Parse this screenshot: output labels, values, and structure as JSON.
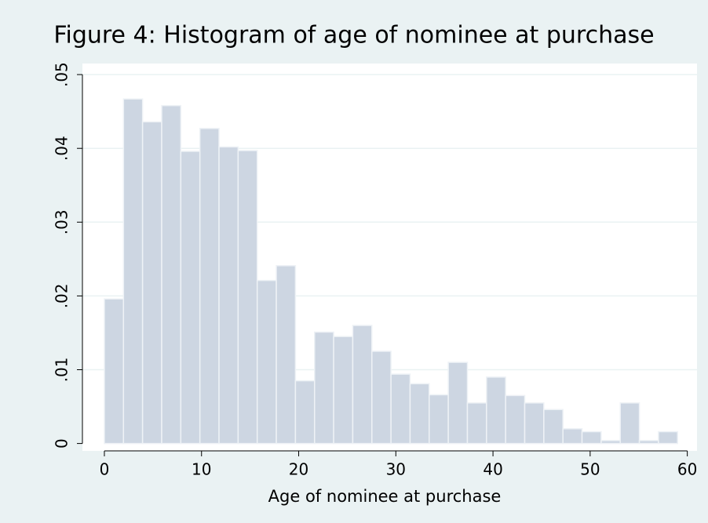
{
  "chart_data": {
    "type": "histogram",
    "title": "Figure 4: Histogram of age of nominee at purchase",
    "x_label": "Age of nominee at purchase",
    "bins": [
      0,
      1.967,
      3.933,
      5.9,
      7.867,
      9.833,
      11.8,
      13.767,
      15.733,
      17.7,
      19.667,
      21.633,
      23.6,
      25.567,
      27.533,
      29.5,
      31.467,
      33.433,
      35.4,
      37.367,
      39.333,
      41.3,
      43.267,
      45.233,
      47.2,
      49.167,
      51.133,
      53.1,
      55.067,
      57.033,
      59
    ],
    "values": [
      0.0196,
      0.0467,
      0.0436,
      0.0458,
      0.0396,
      0.0427,
      0.0402,
      0.0397,
      0.0221,
      0.0241,
      0.0085,
      0.0151,
      0.0145,
      0.016,
      0.0125,
      0.0094,
      0.0081,
      0.0066,
      0.011,
      0.0055,
      0.009,
      0.0065,
      0.0055,
      0.0046,
      0.002,
      0.0016,
      0.0004,
      0.0055,
      0.0004,
      0.0016
    ],
    "color": "#cdd6e2",
    "xlim": [
      -2.26,
      61.0
    ],
    "ylim": [
      -0.001,
      0.0515
    ],
    "xticks": [
      0,
      10,
      20,
      30,
      40,
      50,
      60
    ],
    "yticks": [
      0,
      {
        "value": 0.01,
        "label": ".01"
      },
      {
        "value": 0.02,
        "label": ".02"
      },
      {
        "value": 0.03,
        "label": ".03"
      },
      {
        "value": 0.04,
        "label": ".04"
      },
      {
        "value": 0.05,
        "label": ".05"
      }
    ],
    "grid": true
  }
}
